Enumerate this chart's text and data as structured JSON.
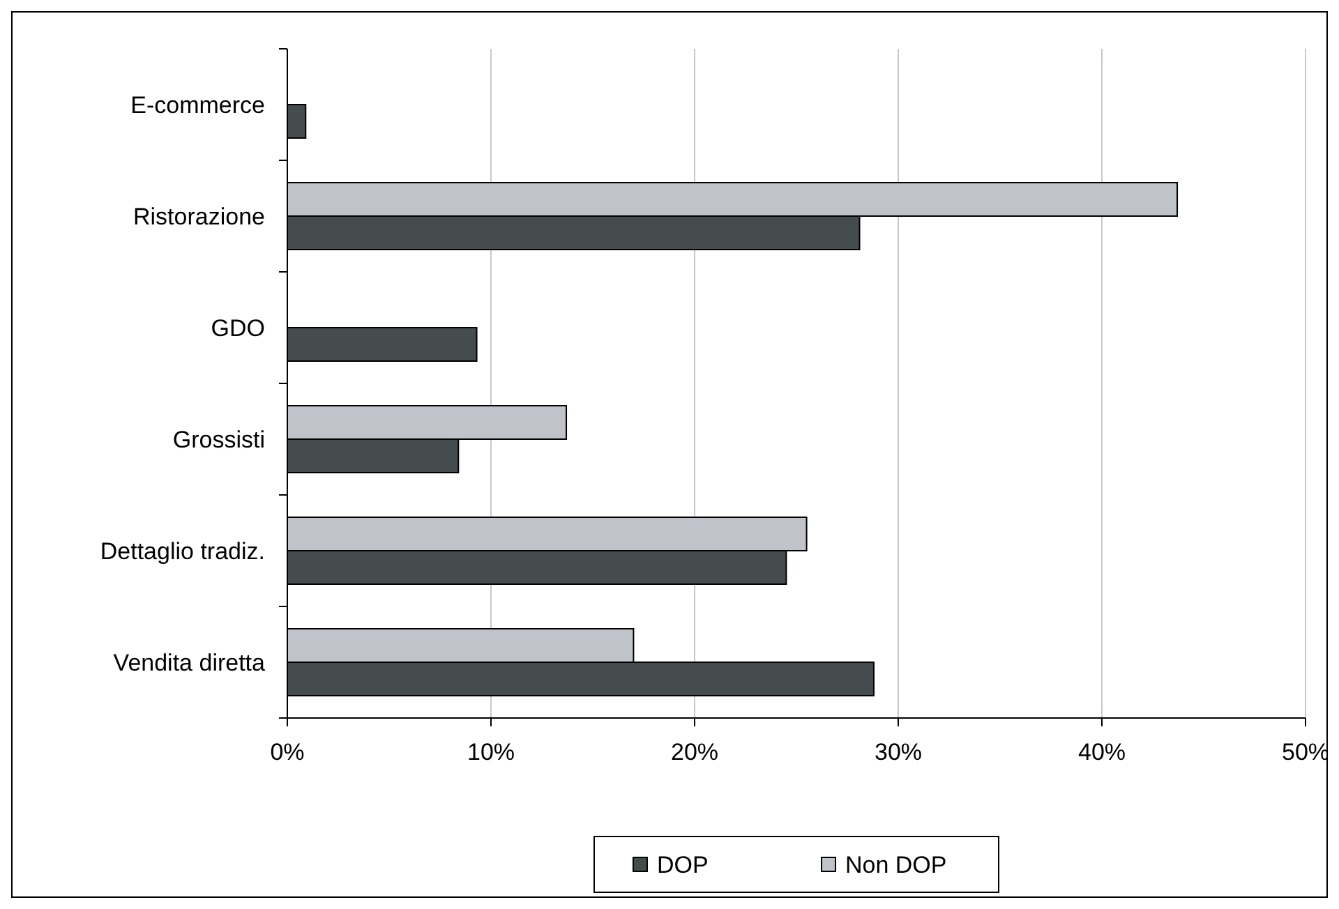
{
  "chart_data": {
    "type": "bar",
    "orientation": "horizontal",
    "categories": [
      "E-commerce",
      "Ristorazione",
      "GDO",
      "Grossisti",
      "Dettaglio tradiz.",
      "Vendita diretta"
    ],
    "series": [
      {
        "name": "Non DOP",
        "color": "#c0c3ca",
        "values": [
          null,
          43.7,
          null,
          13.7,
          25.5,
          17.0
        ]
      },
      {
        "name": "DOP",
        "color": "#454c4e",
        "values": [
          0.9,
          28.1,
          9.3,
          8.4,
          24.5,
          28.8
        ]
      }
    ],
    "xlim": [
      0,
      50
    ],
    "xticks": [
      {
        "value": 0,
        "label": "0%"
      },
      {
        "value": 10,
        "label": "10%"
      },
      {
        "value": 20,
        "label": "20%"
      },
      {
        "value": 30,
        "label": "30%"
      },
      {
        "value": 40,
        "label": "40%"
      },
      {
        "value": 50,
        "label": "50%"
      }
    ],
    "grid": "x",
    "legend": "bottom"
  }
}
